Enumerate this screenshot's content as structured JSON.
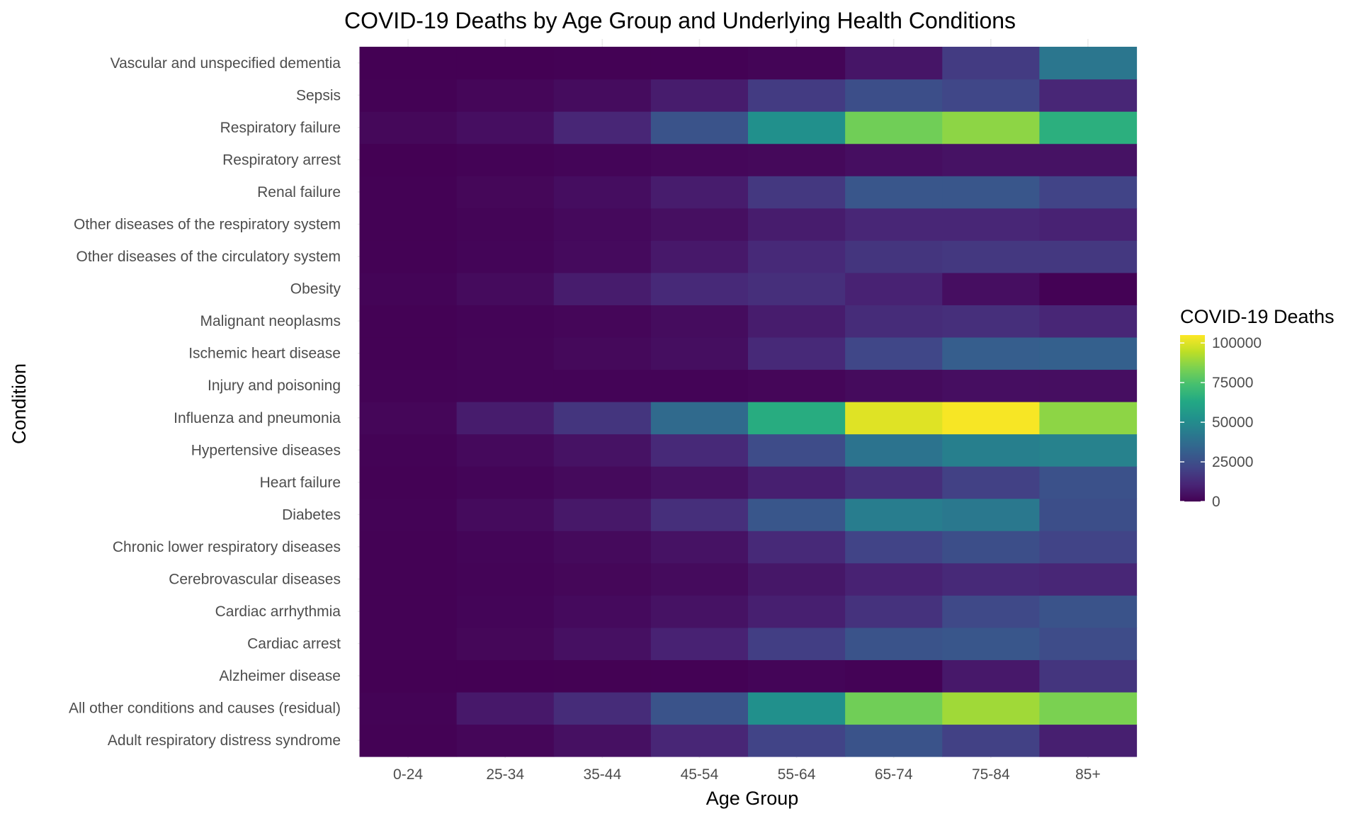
{
  "chart_data": {
    "type": "heatmap",
    "title": "COVID-19 Deaths by Age Group and Underlying Health Conditions",
    "xlabel": "Age Group",
    "ylabel": "Condition",
    "x_categories": [
      "0-24",
      "25-34",
      "35-44",
      "45-54",
      "55-64",
      "65-74",
      "75-84",
      "85+"
    ],
    "y_categories": [
      "Adult respiratory distress syndrome",
      "All other conditions and causes (residual)",
      "Alzheimer disease",
      "Cardiac arrest",
      "Cardiac arrhythmia",
      "Cerebrovascular diseases",
      "Chronic lower respiratory diseases",
      "Diabetes",
      "Heart failure",
      "Hypertensive diseases",
      "Influenza and pneumonia",
      "Injury and poisoning",
      "Ischemic heart disease",
      "Malignant neoplasms",
      "Obesity",
      "Other diseases of the circulatory system",
      "Other diseases of the respiratory system",
      "Renal failure",
      "Respiratory arrest",
      "Respiratory failure",
      "Sepsis",
      "Vascular and unspecified dementia"
    ],
    "values": [
      [
        200,
        1500,
        4500,
        11000,
        21000,
        27000,
        20000,
        9000
      ],
      [
        700,
        7000,
        13000,
        27000,
        52000,
        82000,
        90000,
        84000
      ],
      [
        0,
        50,
        150,
        400,
        1300,
        600,
        7000,
        16000
      ],
      [
        300,
        1700,
        4500,
        10000,
        19000,
        27000,
        28000,
        24000
      ],
      [
        300,
        1300,
        2800,
        5000,
        9000,
        15000,
        23000,
        27000
      ],
      [
        200,
        800,
        1700,
        3000,
        6500,
        10000,
        12000,
        11000
      ],
      [
        300,
        1200,
        2600,
        5000,
        12000,
        21000,
        25000,
        21000
      ],
      [
        600,
        2900,
        6800,
        14000,
        28000,
        44000,
        42000,
        25000
      ],
      [
        300,
        1200,
        2600,
        4800,
        9000,
        14000,
        20000,
        26000
      ],
      [
        500,
        2500,
        5200,
        12000,
        24000,
        40000,
        45000,
        46000
      ],
      [
        1500,
        8000,
        16000,
        36000,
        65000,
        100000,
        104000,
        87000
      ],
      [
        600,
        1000,
        1000,
        1000,
        1500,
        3000,
        4000,
        4000
      ],
      [
        300,
        1100,
        2300,
        3800,
        12000,
        22000,
        31000,
        32000
      ],
      [
        200,
        800,
        1500,
        3300,
        8000,
        13000,
        14000,
        11000
      ],
      [
        1000,
        3000,
        8000,
        12000,
        14000,
        10000,
        4000,
        200
      ],
      [
        300,
        1200,
        2800,
        7000,
        12000,
        16000,
        17000,
        17000
      ],
      [
        300,
        1100,
        2400,
        4200,
        8000,
        11000,
        11000,
        10000
      ],
      [
        400,
        1700,
        3700,
        8000,
        17000,
        28000,
        28000,
        21000
      ],
      [
        100,
        500,
        1200,
        1800,
        2300,
        4000,
        5000,
        5000
      ],
      [
        2000,
        4000,
        11000,
        27000,
        52000,
        82000,
        87000,
        66000
      ],
      [
        300,
        1500,
        3300,
        8000,
        18000,
        25000,
        22000,
        11000
      ],
      [
        0,
        50,
        200,
        400,
        1100,
        6000,
        18000,
        41000
      ]
    ],
    "colorscale": "viridis",
    "zlim": [
      0,
      105000
    ],
    "legend": {
      "title": "COVID-19 Deaths",
      "ticks": [
        0,
        25000,
        50000,
        75000,
        100000
      ],
      "tick_labels": [
        "0",
        "25000",
        "50000",
        "75000",
        "100000"
      ],
      "placement": "right"
    },
    "grid": true
  }
}
